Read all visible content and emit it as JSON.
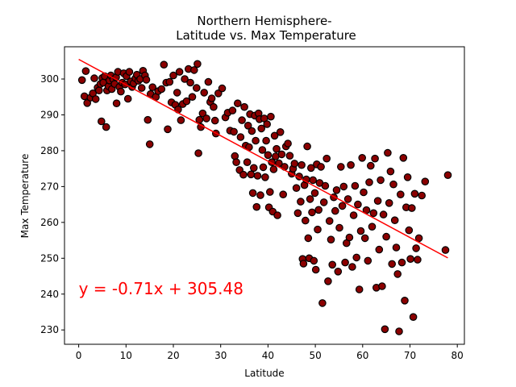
{
  "chart_data": {
    "type": "scatter",
    "title": [
      "Northern Hemisphere-",
      "Latitude vs. Max Temperature"
    ],
    "xlabel": "Latitude",
    "ylabel": "Max Temperature",
    "xlim": [
      -3,
      81.5
    ],
    "ylim": [
      226,
      309
    ],
    "xticks": [
      0,
      10,
      20,
      30,
      40,
      50,
      60,
      70,
      80
    ],
    "yticks": [
      230,
      240,
      250,
      260,
      270,
      280,
      290,
      300
    ],
    "grid": false,
    "point_color": "#8b0000",
    "point_edge": "#000000",
    "regression": {
      "slope": -0.71,
      "intercept": 305.48,
      "x_range": [
        0,
        78
      ],
      "color": "#ff0000",
      "equation_text": "y = -0.71x + 305.48",
      "equation_anchor": [
        0,
        240
      ]
    },
    "points": [
      [
        0.7,
        299.7
      ],
      [
        1.2,
        295.2
      ],
      [
        1.5,
        302.2
      ],
      [
        1.8,
        293.3
      ],
      [
        2.5,
        294.8
      ],
      [
        3.0,
        296.0
      ],
      [
        3.3,
        300.2
      ],
      [
        3.6,
        294.4
      ],
      [
        4.0,
        297.6
      ],
      [
        4.3,
        296.8
      ],
      [
        4.6,
        298.6
      ],
      [
        5.0,
        300.3
      ],
      [
        5.2,
        299.0
      ],
      [
        5.5,
        300.8
      ],
      [
        4.8,
        288.2
      ],
      [
        5.8,
        286.6
      ],
      [
        6.0,
        296.8
      ],
      [
        6.3,
        298.0
      ],
      [
        6.5,
        299.6
      ],
      [
        6.8,
        301.0
      ],
      [
        7.0,
        297.2
      ],
      [
        7.3,
        299.9
      ],
      [
        7.6,
        298.6
      ],
      [
        7.9,
        300.5
      ],
      [
        8.0,
        293.2
      ],
      [
        8.3,
        302.0
      ],
      [
        8.6,
        297.8
      ],
      [
        8.9,
        296.5
      ],
      [
        9.2,
        299.0
      ],
      [
        9.5,
        301.6
      ],
      [
        9.8,
        298.5
      ],
      [
        10.1,
        300.8
      ],
      [
        10.4,
        294.5
      ],
      [
        10.7,
        302.0
      ],
      [
        11.0,
        299.3
      ],
      [
        11.3,
        297.8
      ],
      [
        11.6,
        298.8
      ],
      [
        12.0,
        300.2
      ],
      [
        12.3,
        301.2
      ],
      [
        12.6,
        299.5
      ],
      [
        13.0,
        300.0
      ],
      [
        13.3,
        297.5
      ],
      [
        13.6,
        302.3
      ],
      [
        14.0,
        301.0
      ],
      [
        14.3,
        299.8
      ],
      [
        14.6,
        288.6
      ],
      [
        15.0,
        281.8
      ],
      [
        15.2,
        295.8
      ],
      [
        15.6,
        297.7
      ],
      [
        16.3,
        295.0
      ],
      [
        16.8,
        296.6
      ],
      [
        17.5,
        297.2
      ],
      [
        18.0,
        304.0
      ],
      [
        18.5,
        299.0
      ],
      [
        18.8,
        286.0
      ],
      [
        19.2,
        299.2
      ],
      [
        19.6,
        293.5
      ],
      [
        20.0,
        301.0
      ],
      [
        20.4,
        292.8
      ],
      [
        20.8,
        296.2
      ],
      [
        21.0,
        291.5
      ],
      [
        21.3,
        302.0
      ],
      [
        21.6,
        288.5
      ],
      [
        22.0,
        293.0
      ],
      [
        22.4,
        300.0
      ],
      [
        22.8,
        293.8
      ],
      [
        23.2,
        302.8
      ],
      [
        23.6,
        299.0
      ],
      [
        24.0,
        295.0
      ],
      [
        24.4,
        302.5
      ],
      [
        24.9,
        297.5
      ],
      [
        25.1,
        304.2
      ],
      [
        25.3,
        279.3
      ],
      [
        25.5,
        288.6
      ],
      [
        25.8,
        286.6
      ],
      [
        26.2,
        290.4
      ],
      [
        26.5,
        296.2
      ],
      [
        27.0,
        289.0
      ],
      [
        27.4,
        299.2
      ],
      [
        27.8,
        293.6
      ],
      [
        28.1,
        294.6
      ],
      [
        28.5,
        292.2
      ],
      [
        28.8,
        288.4
      ],
      [
        29.0,
        284.8
      ],
      [
        29.5,
        296.0
      ],
      [
        30.3,
        297.4
      ],
      [
        31.0,
        289.3
      ],
      [
        31.5,
        290.6
      ],
      [
        32.0,
        285.6
      ],
      [
        32.5,
        291.2
      ],
      [
        32.8,
        285.3
      ],
      [
        33.0,
        278.5
      ],
      [
        33.3,
        276.8
      ],
      [
        33.6,
        293.2
      ],
      [
        34.0,
        274.6
      ],
      [
        34.2,
        283.8
      ],
      [
        34.5,
        288.5
      ],
      [
        34.8,
        273.3
      ],
      [
        35.0,
        292.2
      ],
      [
        35.3,
        281.4
      ],
      [
        35.6,
        276.8
      ],
      [
        35.8,
        287.0
      ],
      [
        36.0,
        281.0
      ],
      [
        36.2,
        290.2
      ],
      [
        36.4,
        273.4
      ],
      [
        36.6,
        285.5
      ],
      [
        36.8,
        268.2
      ],
      [
        37.0,
        275.2
      ],
      [
        37.2,
        289.8
      ],
      [
        37.4,
        282.8
      ],
      [
        37.6,
        264.3
      ],
      [
        37.8,
        273.0
      ],
      [
        38.0,
        290.4
      ],
      [
        38.2,
        288.8
      ],
      [
        38.4,
        267.6
      ],
      [
        38.6,
        286.2
      ],
      [
        38.8,
        280.2
      ],
      [
        39.0,
        275.4
      ],
      [
        39.2,
        289.0
      ],
      [
        39.4,
        272.6
      ],
      [
        39.6,
        282.8
      ],
      [
        39.8,
        287.4
      ],
      [
        40.0,
        278.8
      ],
      [
        40.2,
        264.2
      ],
      [
        40.4,
        268.5
      ],
      [
        40.6,
        289.5
      ],
      [
        40.8,
        276.8
      ],
      [
        41.0,
        263.0
      ],
      [
        41.2,
        274.8
      ],
      [
        41.4,
        284.2
      ],
      [
        41.6,
        278.4
      ],
      [
        41.8,
        280.5
      ],
      [
        42.0,
        262.0
      ],
      [
        42.3,
        276.5
      ],
      [
        42.6,
        285.2
      ],
      [
        42.9,
        279.0
      ],
      [
        43.2,
        267.8
      ],
      [
        43.5,
        275.5
      ],
      [
        43.8,
        281.2
      ],
      [
        44.2,
        282.0
      ],
      [
        44.6,
        278.6
      ],
      [
        45.0,
        273.6
      ],
      [
        45.3,
        275.0
      ],
      [
        45.6,
        276.4
      ],
      [
        46.0,
        269.6
      ],
      [
        46.3,
        262.6
      ],
      [
        46.6,
        272.8
      ],
      [
        46.9,
        265.8
      ],
      [
        47.1,
        276.0
      ],
      [
        47.3,
        249.8
      ],
      [
        47.5,
        248.5
      ],
      [
        47.7,
        270.4
      ],
      [
        47.9,
        260.5
      ],
      [
        48.1,
        272.0
      ],
      [
        48.3,
        281.2
      ],
      [
        48.5,
        255.6
      ],
      [
        48.7,
        250.0
      ],
      [
        48.9,
        266.5
      ],
      [
        49.1,
        275.2
      ],
      [
        49.3,
        262.8
      ],
      [
        49.5,
        271.8
      ],
      [
        49.7,
        249.3
      ],
      [
        49.9,
        268.2
      ],
      [
        50.1,
        246.8
      ],
      [
        50.3,
        276.2
      ],
      [
        50.5,
        258.0
      ],
      [
        50.7,
        263.5
      ],
      [
        50.9,
        271.0
      ],
      [
        51.2,
        275.5
      ],
      [
        51.5,
        237.5
      ],
      [
        51.8,
        265.6
      ],
      [
        52.1,
        270.2
      ],
      [
        52.4,
        277.8
      ],
      [
        52.7,
        243.6
      ],
      [
        53.0,
        260.4
      ],
      [
        53.3,
        255.2
      ],
      [
        53.6,
        248.2
      ],
      [
        53.9,
        267.0
      ],
      [
        54.2,
        263.2
      ],
      [
        54.5,
        269.0
      ],
      [
        54.8,
        246.3
      ],
      [
        55.1,
        258.5
      ],
      [
        55.4,
        275.5
      ],
      [
        55.7,
        264.6
      ],
      [
        56.0,
        270.0
      ],
      [
        56.3,
        248.8
      ],
      [
        56.6,
        254.2
      ],
      [
        56.9,
        266.5
      ],
      [
        57.2,
        255.8
      ],
      [
        57.5,
        276.0
      ],
      [
        57.8,
        247.6
      ],
      [
        58.1,
        262.0
      ],
      [
        58.4,
        270.2
      ],
      [
        58.7,
        250.2
      ],
      [
        59.0,
        265.0
      ],
      [
        59.3,
        241.3
      ],
      [
        59.6,
        257.6
      ],
      [
        59.9,
        278.0
      ],
      [
        60.2,
        268.4
      ],
      [
        60.5,
        255.6
      ],
      [
        60.8,
        263.4
      ],
      [
        61.1,
        249.3
      ],
      [
        61.4,
        271.2
      ],
      [
        61.7,
        275.8
      ],
      [
        62.0,
        258.8
      ],
      [
        62.3,
        262.6
      ],
      [
        62.6,
        277.8
      ],
      [
        62.9,
        241.8
      ],
      [
        63.2,
        266.0
      ],
      [
        63.5,
        252.4
      ],
      [
        63.8,
        271.8
      ],
      [
        64.1,
        242.2
      ],
      [
        64.4,
        262.2
      ],
      [
        64.7,
        230.2
      ],
      [
        65.0,
        256.0
      ],
      [
        65.3,
        279.4
      ],
      [
        65.6,
        265.4
      ],
      [
        65.9,
        274.2
      ],
      [
        66.2,
        248.4
      ],
      [
        66.5,
        270.6
      ],
      [
        66.8,
        260.6
      ],
      [
        67.1,
        253.0
      ],
      [
        67.4,
        245.6
      ],
      [
        67.7,
        229.6
      ],
      [
        68.0,
        267.8
      ],
      [
        68.3,
        248.8
      ],
      [
        68.6,
        278.0
      ],
      [
        68.9,
        238.2
      ],
      [
        69.2,
        264.2
      ],
      [
        69.5,
        272.6
      ],
      [
        69.8,
        257.8
      ],
      [
        70.1,
        249.8
      ],
      [
        70.4,
        264.0
      ],
      [
        70.7,
        233.6
      ],
      [
        71.0,
        268.0
      ],
      [
        71.3,
        252.8
      ],
      [
        71.6,
        249.6
      ],
      [
        71.9,
        255.6
      ],
      [
        72.5,
        267.5
      ],
      [
        73.2,
        271.4
      ],
      [
        77.5,
        252.3
      ],
      [
        78.0,
        273.2
      ]
    ]
  }
}
